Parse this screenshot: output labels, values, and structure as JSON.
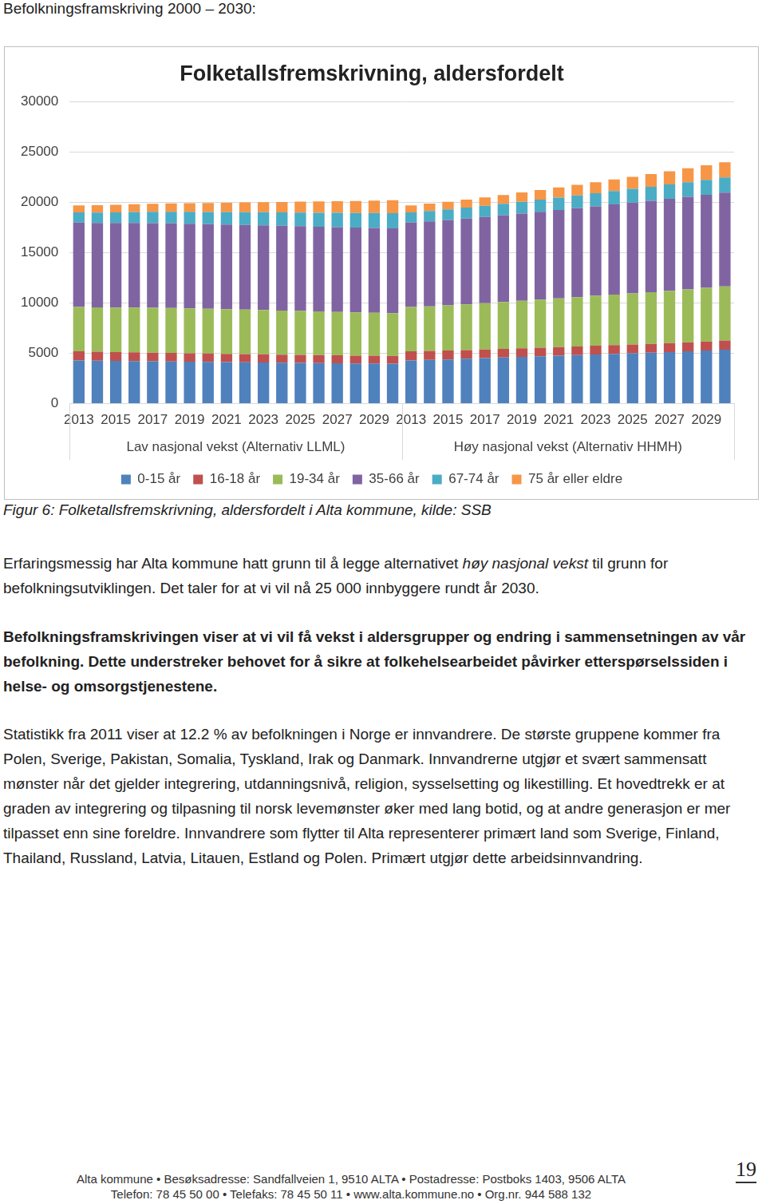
{
  "header": "Befolkningsframskriving 2000 – 2030:",
  "chart_data": {
    "type": "bar",
    "title": "Folketallsfremskrivning, aldersfordelt",
    "categories": [
      "2013",
      null,
      "2015",
      null,
      "2017",
      null,
      "2019",
      null,
      "2021",
      null,
      "2023",
      null,
      "2025",
      null,
      "2027",
      null,
      "2029",
      null,
      "2013",
      null,
      "2015",
      null,
      "2017",
      null,
      "2019",
      null,
      "2021",
      null,
      "2023",
      null,
      "2025",
      null,
      "2027",
      null,
      "2029",
      null
    ],
    "annotations": [
      "Lav nasjonal vekst (Alternativ LLML)",
      "Høy nasjonal vekst (Alternativ HHMH)"
    ],
    "series": [
      {
        "name": "0-15 år",
        "color": "#4F81BD",
        "values": [
          4300,
          4280,
          4260,
          4240,
          4220,
          4200,
          4180,
          4160,
          4140,
          4120,
          4100,
          4080,
          4060,
          4040,
          4020,
          4000,
          3990,
          3980,
          4300,
          4350,
          4400,
          4460,
          4520,
          4580,
          4640,
          4700,
          4760,
          4820,
          4880,
          4940,
          5000,
          5060,
          5130,
          5200,
          5280,
          5360
        ]
      },
      {
        "name": "16-18 år",
        "color": "#C0504D",
        "values": [
          900,
          880,
          870,
          860,
          850,
          840,
          830,
          820,
          810,
          800,
          800,
          790,
          790,
          780,
          780,
          770,
          770,
          760,
          900,
          890,
          880,
          870,
          860,
          860,
          860,
          860,
          860,
          860,
          870,
          870,
          880,
          880,
          890,
          900,
          900,
          910
        ]
      },
      {
        "name": "19-34 år",
        "color": "#9BBB59",
        "values": [
          4400,
          4400,
          4420,
          4440,
          4450,
          4460,
          4450,
          4440,
          4430,
          4420,
          4400,
          4380,
          4360,
          4340,
          4320,
          4300,
          4280,
          4260,
          4400,
          4430,
          4480,
          4540,
          4600,
          4660,
          4720,
          4780,
          4840,
          4900,
          4960,
          5020,
          5080,
          5140,
          5200,
          5260,
          5320,
          5380
        ]
      },
      {
        "name": "35-66 år",
        "color": "#8064A2",
        "values": [
          8400,
          8400,
          8400,
          8410,
          8420,
          8420,
          8420,
          8420,
          8420,
          8420,
          8420,
          8420,
          8420,
          8420,
          8420,
          8420,
          8420,
          8420,
          8400,
          8440,
          8480,
          8520,
          8560,
          8600,
          8660,
          8720,
          8780,
          8840,
          8900,
          8960,
          9020,
          9080,
          9140,
          9200,
          9260,
          9320
        ]
      },
      {
        "name": "67-74 år",
        "color": "#4BACC6",
        "values": [
          1000,
          1030,
          1060,
          1090,
          1120,
          1150,
          1180,
          1210,
          1240,
          1270,
          1300,
          1330,
          1360,
          1390,
          1420,
          1450,
          1480,
          1510,
          1000,
          1030,
          1060,
          1090,
          1120,
          1150,
          1180,
          1210,
          1240,
          1270,
          1300,
          1330,
          1360,
          1390,
          1420,
          1450,
          1480,
          1510
        ]
      },
      {
        "name": "75 år eller eldre",
        "color": "#F79646",
        "values": [
          700,
          720,
          740,
          770,
          800,
          830,
          860,
          890,
          920,
          960,
          1000,
          1040,
          1080,
          1120,
          1160,
          1200,
          1240,
          1280,
          700,
          730,
          760,
          800,
          840,
          880,
          920,
          960,
          1000,
          1050,
          1100,
          1150,
          1200,
          1260,
          1320,
          1380,
          1440,
          1500
        ]
      }
    ],
    "stacked": true,
    "ylim": [
      0,
      30000
    ],
    "yticks": [
      0,
      5000,
      10000,
      15000,
      20000,
      25000,
      30000
    ],
    "grid": true,
    "legend": "bottom"
  },
  "caption": "Figur 6: Folketallsfremskrivning, aldersfordelt i Alta kommune, kilde: SSB",
  "paragraphs": [
    {
      "bold": false,
      "parts": [
        {
          "text": "Erfaringsmessig har Alta kommune hatt grunn til å legge alternativet ",
          "italic": false
        },
        {
          "text": "høy nasjonal vekst",
          "italic": true
        },
        {
          "text": " til grunn for befolkningsutviklingen. Det taler for at vi vil nå 25 000 innbyggere rundt år 2030.",
          "italic": false
        }
      ]
    },
    {
      "bold": true,
      "parts": [
        {
          "text": "Befolkningsframskrivingen viser at vi vil få vekst i aldersgrupper og endring i sammensetningen av vår befolkning. Dette understreker behovet for å sikre at folkehelsearbeidet påvirker etterspørselssiden i helse- og omsorgstjenestene.",
          "italic": false
        }
      ]
    },
    {
      "bold": false,
      "parts": [
        {
          "text": "Statistikk fra 2011 viser at 12.2 % av befolkningen i Norge er innvandrere. De største gruppene kommer fra Polen, Sverige, Pakistan, Somalia, Tyskland, Irak og Danmark. Innvandrerne utgjør et svært sammensatt mønster når det gjelder integrering, utdanningsnivå, religion, sysselsetting og likestilling. Et hovedtrekk er at graden av integrering og tilpasning til norsk levemønster øker med lang botid, og at andre generasjon er mer tilpasset enn sine foreldre. Innvandrere som flytter til Alta representerer primært land som Sverige, Finland, Thailand, Russland, Latvia, Litauen, Estland og Polen. Primært utgjør dette arbeidsinnvandring.",
          "italic": false
        }
      ]
    }
  ],
  "footer": [
    "Alta kommune  •  Besøksadresse: Sandfallveien 1, 9510 ALTA  •  Postadresse: Postboks 1403, 9506 ALTA",
    "Telefon: 78 45 50 00  •  Telefaks: 78 45 50 11  •  www.alta.kommune.no  •  Org.nr. 944 588 132"
  ],
  "page_number": "19"
}
